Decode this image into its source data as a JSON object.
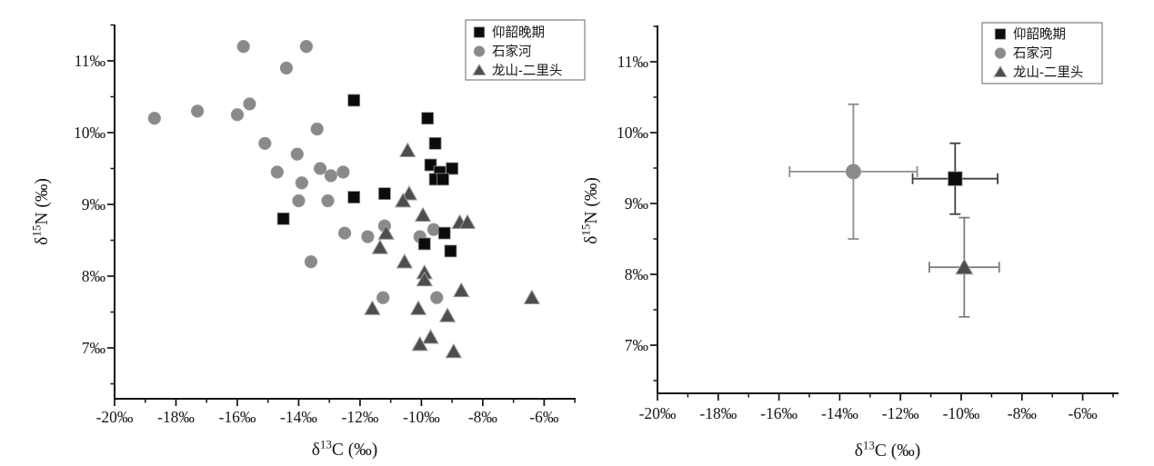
{
  "figure": {
    "background": "#ffffff",
    "axis_color": "#111111",
    "legend_items": [
      {
        "label": "仰韶晚期",
        "marker": "square",
        "color": "#0b0b0b"
      },
      {
        "label": "石家河",
        "marker": "circle",
        "color": "#8a8a8a"
      },
      {
        "label": "龙山-二里头",
        "marker": "triangle",
        "color": "#4d4d4d"
      }
    ]
  },
  "chart_data": [
    {
      "id": "scatter-left",
      "type": "scatter",
      "title": "",
      "xlabel": {
        "base": "δ",
        "sup": "13",
        "rest": "C (‰)",
        "text": "δ13C (‰)"
      },
      "ylabel": {
        "base": "δ",
        "sup": "15",
        "rest": "N (‰)",
        "text": "δ15N (‰)"
      },
      "xlim": [
        -20,
        -4.9
      ],
      "ylim": [
        6.3,
        11.5
      ],
      "xticks": [
        -20,
        -18,
        -16,
        -14,
        -12,
        -10,
        -8,
        -6
      ],
      "yticks": [
        7,
        8,
        9,
        10,
        11
      ],
      "tick_suffix": "‰",
      "grid": false,
      "legend_position": "top-right",
      "series": [
        {
          "name": "仰韶晚期",
          "marker": "square",
          "color": "#0b0b0b",
          "points": [
            [
              -12.2,
              10.45
            ],
            [
              -9.8,
              10.2
            ],
            [
              -9.55,
              9.85
            ],
            [
              -9.7,
              9.55
            ],
            [
              -9.0,
              9.5
            ],
            [
              -9.4,
              9.45
            ],
            [
              -9.55,
              9.35
            ],
            [
              -9.3,
              9.35
            ],
            [
              -12.2,
              9.1
            ],
            [
              -11.2,
              9.15
            ],
            [
              -14.5,
              8.8
            ],
            [
              -9.25,
              8.6
            ],
            [
              -9.9,
              8.45
            ],
            [
              -9.05,
              8.35
            ]
          ]
        },
        {
          "name": "石家河",
          "marker": "circle",
          "color": "#8a8a8a",
          "points": [
            [
              -15.8,
              11.2
            ],
            [
              -13.75,
              11.2
            ],
            [
              -14.4,
              10.9
            ],
            [
              -17.3,
              10.3
            ],
            [
              -18.7,
              10.2
            ],
            [
              -16.0,
              10.25
            ],
            [
              -15.6,
              10.4
            ],
            [
              -13.4,
              10.05
            ],
            [
              -15.1,
              9.85
            ],
            [
              -14.05,
              9.7
            ],
            [
              -14.7,
              9.45
            ],
            [
              -13.3,
              9.5
            ],
            [
              -12.95,
              9.4
            ],
            [
              -12.55,
              9.45
            ],
            [
              -13.9,
              9.3
            ],
            [
              -14.0,
              9.05
            ],
            [
              -13.05,
              9.05
            ],
            [
              -12.5,
              8.6
            ],
            [
              -11.75,
              8.55
            ],
            [
              -11.2,
              8.7
            ],
            [
              -10.05,
              8.55
            ],
            [
              -9.6,
              8.65
            ],
            [
              -13.6,
              8.2
            ],
            [
              -11.25,
              7.7
            ],
            [
              -9.5,
              7.7
            ]
          ]
        },
        {
          "name": "龙山-二里头",
          "marker": "triangle",
          "color": "#4d4d4d",
          "points": [
            [
              -10.45,
              9.75
            ],
            [
              -10.4,
              9.15
            ],
            [
              -10.6,
              9.05
            ],
            [
              -9.95,
              8.85
            ],
            [
              -8.75,
              8.75
            ],
            [
              -8.5,
              8.75
            ],
            [
              -11.15,
              8.6
            ],
            [
              -11.35,
              8.4
            ],
            [
              -10.55,
              8.2
            ],
            [
              -9.9,
              8.05
            ],
            [
              -9.9,
              7.95
            ],
            [
              -8.7,
              7.8
            ],
            [
              -11.6,
              7.55
            ],
            [
              -10.1,
              7.55
            ],
            [
              -9.15,
              7.45
            ],
            [
              -9.7,
              7.15
            ],
            [
              -10.05,
              7.05
            ],
            [
              -8.95,
              6.95
            ],
            [
              -6.4,
              7.7
            ]
          ]
        }
      ]
    },
    {
      "id": "scatter-right",
      "type": "scatter_errorbar",
      "title": "",
      "xlabel": {
        "base": "δ",
        "sup": "13",
        "rest": "C (‰)",
        "text": "δ13C (‰)"
      },
      "ylabel": {
        "base": "δ",
        "sup": "15",
        "rest": "N (‰)",
        "text": "δ15N (‰)"
      },
      "xlim": [
        -20,
        -4.8
      ],
      "ylim": [
        6.3,
        11.5
      ],
      "xticks": [
        -20,
        -18,
        -16,
        -14,
        -12,
        -10,
        -8,
        -6
      ],
      "yticks": [
        7,
        8,
        9,
        10,
        11
      ],
      "tick_suffix": "‰",
      "grid": false,
      "legend_position": "top-right",
      "series": [
        {
          "name": "仰韶晚期",
          "marker": "square",
          "color": "#0b0b0b",
          "bar_color": "#3f3f3f",
          "mean": [
            -10.2,
            9.35
          ],
          "xerr": 1.4,
          "yerr": 0.5
        },
        {
          "name": "石家河",
          "marker": "circle",
          "color": "#8a8a8a",
          "bar_color": "#8d8d8d",
          "mean": [
            -13.55,
            9.45
          ],
          "xerr": 2.1,
          "yerr": 0.95
        },
        {
          "name": "龙山-二里头",
          "marker": "triangle",
          "color": "#4d4d4d",
          "bar_color": "#7d7d7d",
          "mean": [
            -9.9,
            8.1
          ],
          "xerr": 1.15,
          "yerr": 0.7
        }
      ]
    }
  ]
}
